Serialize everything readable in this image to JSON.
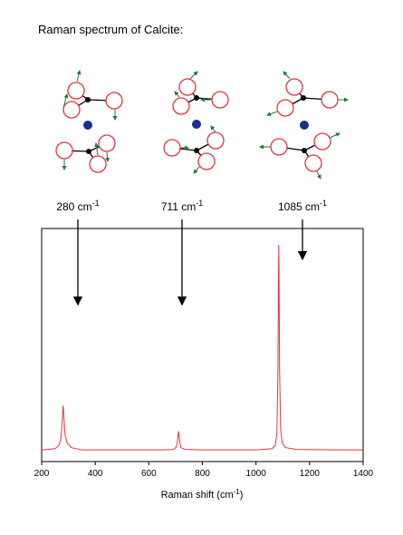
{
  "chart_data": {
    "type": "line",
    "title": "Raman spectrum of Calcite:",
    "annotations": [
      [
        "280 cm",
        "-1"
      ],
      [
        "711 cm",
        "-1"
      ],
      [
        "1085 cm",
        "-1"
      ]
    ],
    "xlabel": [
      "Raman shift (cm",
      "-1",
      ")"
    ],
    "x": [
      200,
      250,
      265,
      272,
      276,
      279,
      280,
      281,
      284,
      288,
      295,
      310,
      350,
      500,
      650,
      690,
      702,
      706,
      709,
      711,
      713,
      716,
      720,
      735,
      800,
      1000,
      1060,
      1072,
      1078,
      1082,
      1084,
      1085,
      1086,
      1088,
      1092,
      1098,
      1110,
      1150,
      1300,
      1400
    ],
    "values": [
      5,
      5.5,
      7,
      10,
      16,
      22,
      24,
      23,
      17,
      11,
      8,
      6,
      5,
      5,
      5,
      5.2,
      6,
      8,
      11,
      13,
      11,
      8,
      6,
      5.2,
      5,
      5,
      5.5,
      7,
      12,
      40,
      80,
      93,
      80,
      40,
      14,
      8,
      6,
      5.2,
      5,
      5
    ],
    "color": "#e8333b",
    "xlim": [
      200,
      1400
    ],
    "xticks": [
      200,
      400,
      600,
      800,
      1000,
      1200,
      1400
    ],
    "ylim": [
      0,
      100
    ]
  }
}
